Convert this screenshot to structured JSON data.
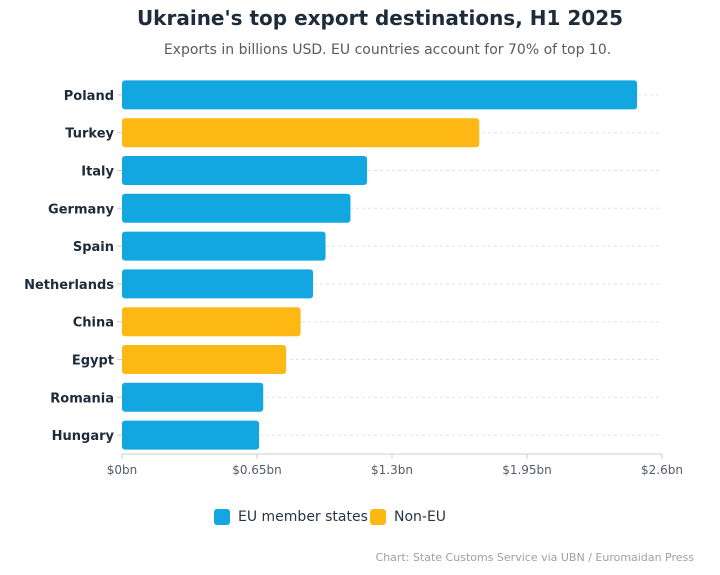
{
  "chart_data": {
    "type": "bar",
    "orientation": "horizontal",
    "title": "Ukraine's top export destinations, H1 2025",
    "subtitle": "Exports in billions USD. EU countries account for 70% of top 10.",
    "categories": [
      "Poland",
      "Turkey",
      "Italy",
      "Germany",
      "Spain",
      "Netherlands",
      "China",
      "Egypt",
      "Romania",
      "Hungary"
    ],
    "values": [
      2.48,
      1.72,
      1.18,
      1.1,
      0.98,
      0.92,
      0.86,
      0.79,
      0.68,
      0.66
    ],
    "groups": [
      "EU member states",
      "Non-EU",
      "EU member states",
      "EU member states",
      "EU member states",
      "EU member states",
      "Non-EU",
      "Non-EU",
      "EU member states",
      "EU member states"
    ],
    "xlim": [
      0,
      2.6
    ],
    "xticks": [
      0,
      0.65,
      1.3,
      1.95,
      2.6
    ],
    "xtick_labels": [
      "$0bn",
      "$0.65bn",
      "$1.3bn",
      "$1.95bn",
      "$2.6bn"
    ],
    "grid": true,
    "legend": {
      "placement": "bottom",
      "entries": [
        {
          "name": "EU member states",
          "color": "#12a7e0"
        },
        {
          "name": "Non-EU",
          "color": "#fdb813"
        }
      ]
    },
    "source": "Chart: State Customs Service via UBN / Euromaidan Press"
  }
}
